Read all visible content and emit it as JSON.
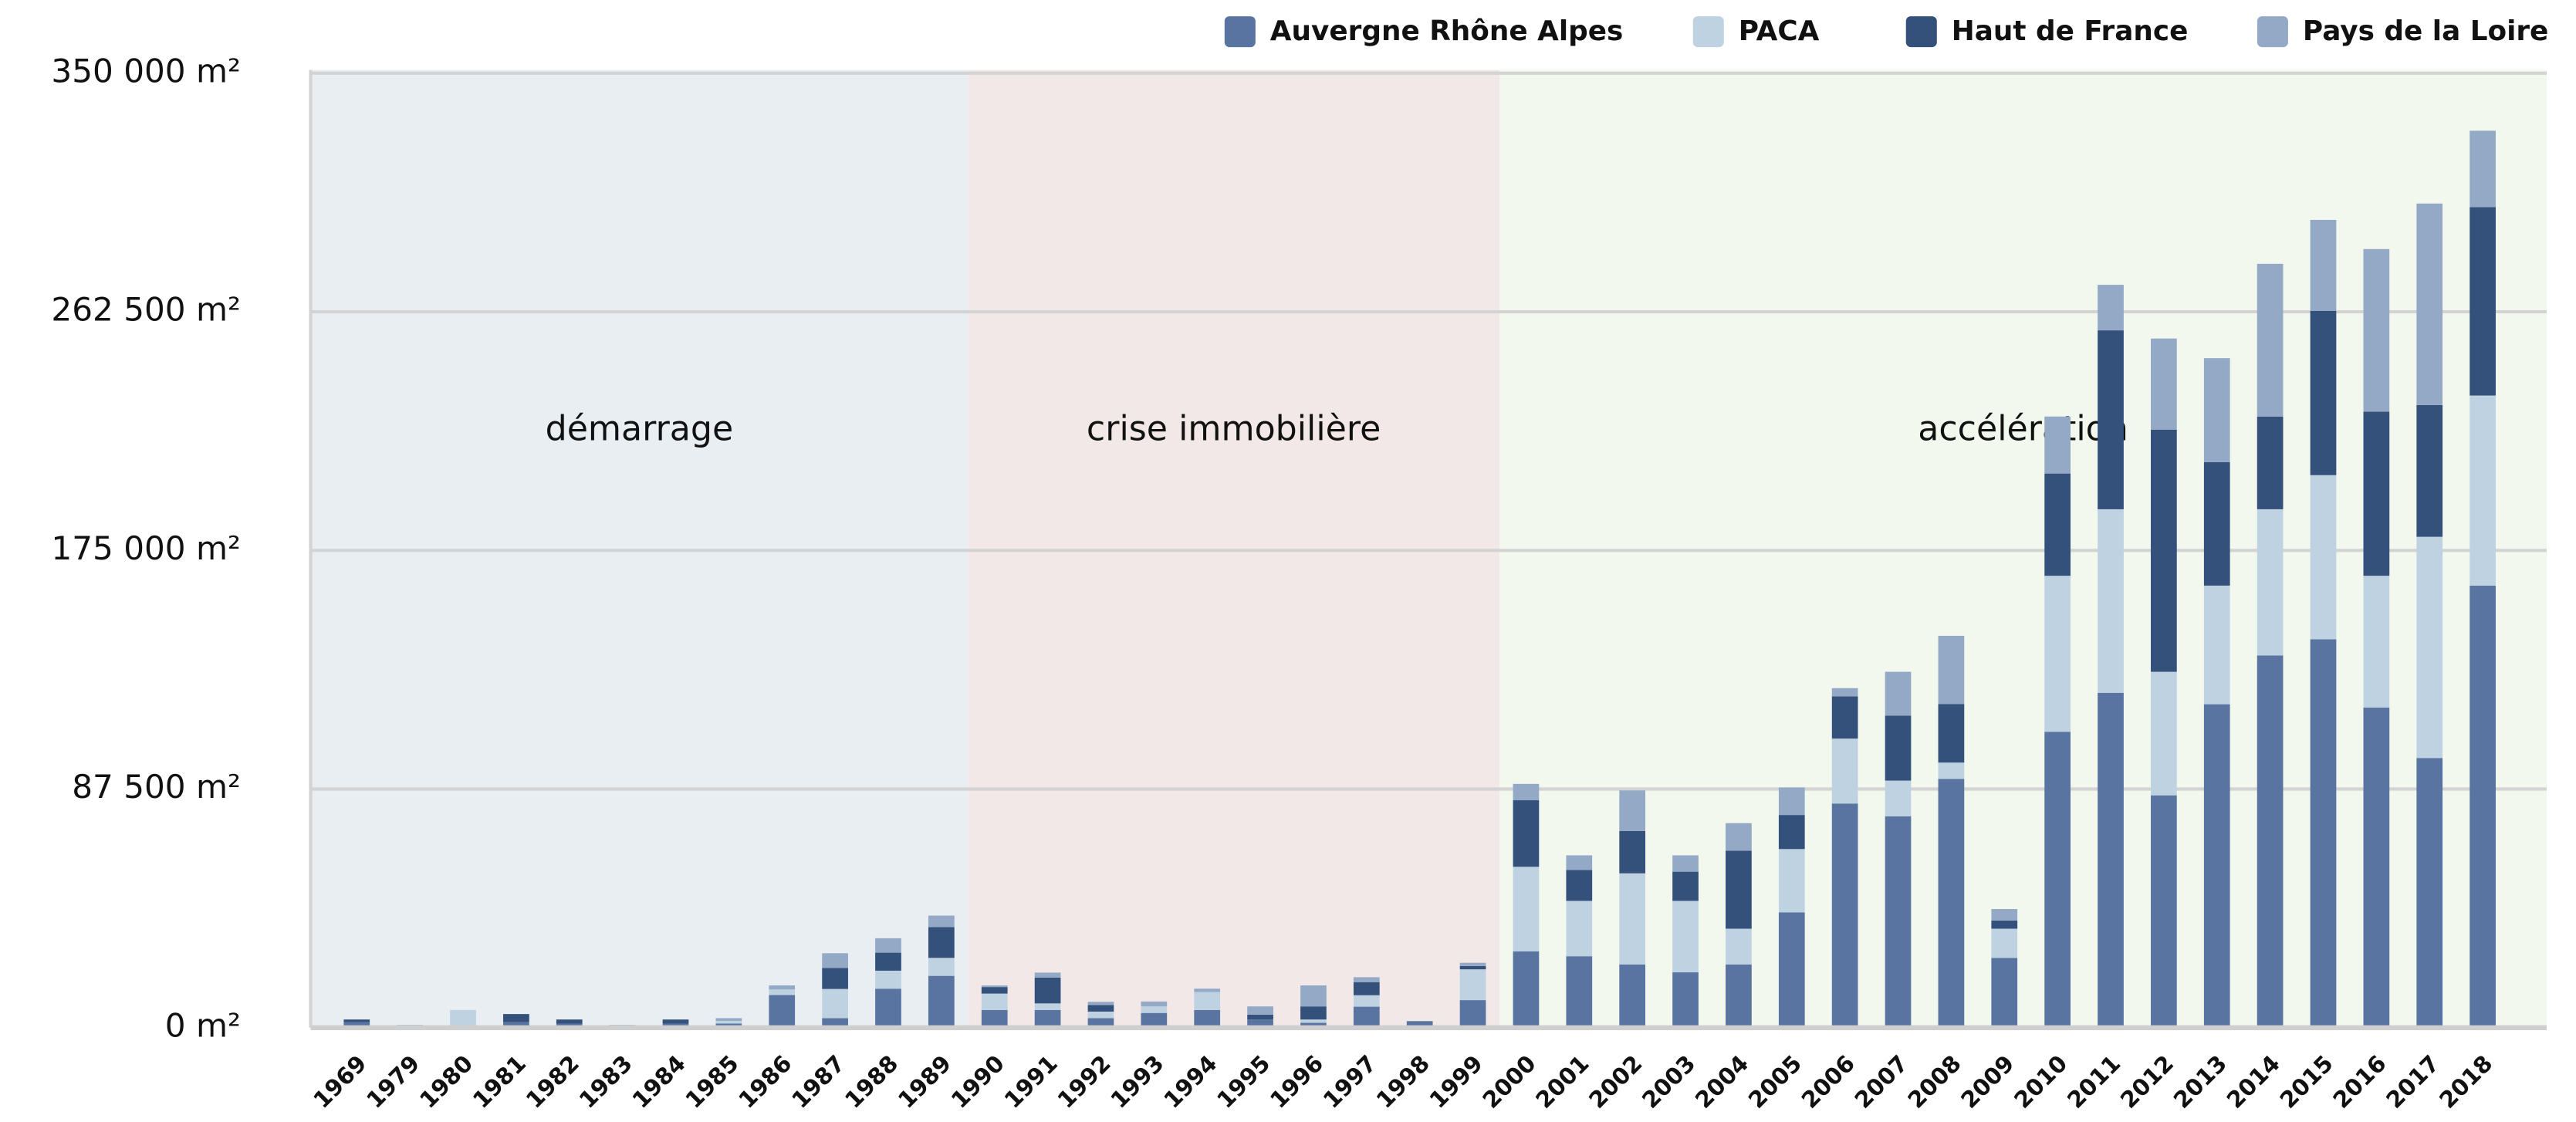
{
  "chart_data": {
    "type": "stacked_bar",
    "categories": [
      "1969",
      "1979",
      "1980",
      "1981",
      "1982",
      "1983",
      "1984",
      "1985",
      "1986",
      "1987",
      "1988",
      "1989",
      "1990",
      "1991",
      "1992",
      "1993",
      "1994",
      "1995",
      "1996",
      "1997",
      "1998",
      "1999",
      "2000",
      "2001",
      "2002",
      "2003",
      "2004",
      "2005",
      "2006",
      "2007",
      "2008",
      "2009",
      "2010",
      "2011",
      "2012",
      "2013",
      "2014",
      "2015",
      "2016",
      "2017",
      "2018"
    ],
    "series": [
      {
        "name": "Auvergne Rhône Alpes",
        "color": "#5a74a1",
        "values": [
          2000,
          0,
          0,
          2000,
          1500,
          0,
          1500,
          1500,
          12000,
          3500,
          14300,
          19000,
          6500,
          6500,
          3500,
          5400,
          6500,
          3000,
          1800,
          7700,
          2400,
          10100,
          28000,
          26200,
          23200,
          20300,
          23200,
          42300,
          82200,
          77500,
          91200,
          25600,
          108500,
          122800,
          85200,
          118600,
          136500,
          142400,
          117400,
          98900,
          162100
        ]
      },
      {
        "name": "PACA",
        "color": "#bfd2e2",
        "values": [
          0,
          0,
          6500,
          0,
          0,
          0,
          0,
          1000,
          2000,
          10700,
          6600,
          6600,
          6000,
          2400,
          2400,
          2400,
          6600,
          0,
          1200,
          4200,
          0,
          11300,
          31000,
          20300,
          33400,
          26200,
          13100,
          23200,
          23800,
          13100,
          6000,
          10700,
          57200,
          67300,
          45300,
          43500,
          53600,
          60200,
          48300,
          81100,
          69700
        ]
      },
      {
        "name": "Haut de France",
        "color": "#34517c",
        "values": [
          1000,
          0,
          0,
          3000,
          1500,
          0,
          1500,
          0,
          0,
          7700,
          6600,
          11300,
          2400,
          9500,
          2400,
          0,
          0,
          1800,
          4800,
          4800,
          0,
          1200,
          24400,
          11300,
          15500,
          10700,
          28600,
          12500,
          15500,
          23800,
          21500,
          3000,
          37500,
          65600,
          88800,
          45300,
          34000,
          60200,
          60200,
          48300,
          69100
        ]
      },
      {
        "name": "Pays de la Loire",
        "color": "#94a9c5",
        "values": [
          0,
          1000,
          0,
          0,
          0,
          1000,
          0,
          1000,
          1500,
          5400,
          5300,
          4200,
          600,
          1800,
          1200,
          1800,
          1200,
          3000,
          7700,
          1800,
          0,
          1200,
          6000,
          5400,
          14900,
          6000,
          10100,
          10100,
          3000,
          16100,
          25000,
          4200,
          20900,
          16700,
          33400,
          38100,
          56000,
          33400,
          59600,
          73900,
          28000
        ]
      }
    ],
    "ylim": [
      0,
      350000
    ],
    "yticks": [
      {
        "value": 0,
        "label": "0 m²"
      },
      {
        "value": 87500,
        "label": "87 500 m²"
      },
      {
        "value": 175000,
        "label": "175 000 m²"
      },
      {
        "value": 262500,
        "label": "262 500 m²"
      },
      {
        "value": 350000,
        "label": "350 000 m²"
      }
    ],
    "grid": true,
    "legend": "top-right",
    "periods": [
      {
        "label": "démarrage",
        "from": "1969",
        "to": "1989",
        "color": "#e9eef3"
      },
      {
        "label": "crise immobilière",
        "from": "1990",
        "to": "1999",
        "color": "#f2e8e8"
      },
      {
        "label": "accélération",
        "from": "2000",
        "to": "2018",
        "color": "#f3f8ef"
      }
    ]
  }
}
